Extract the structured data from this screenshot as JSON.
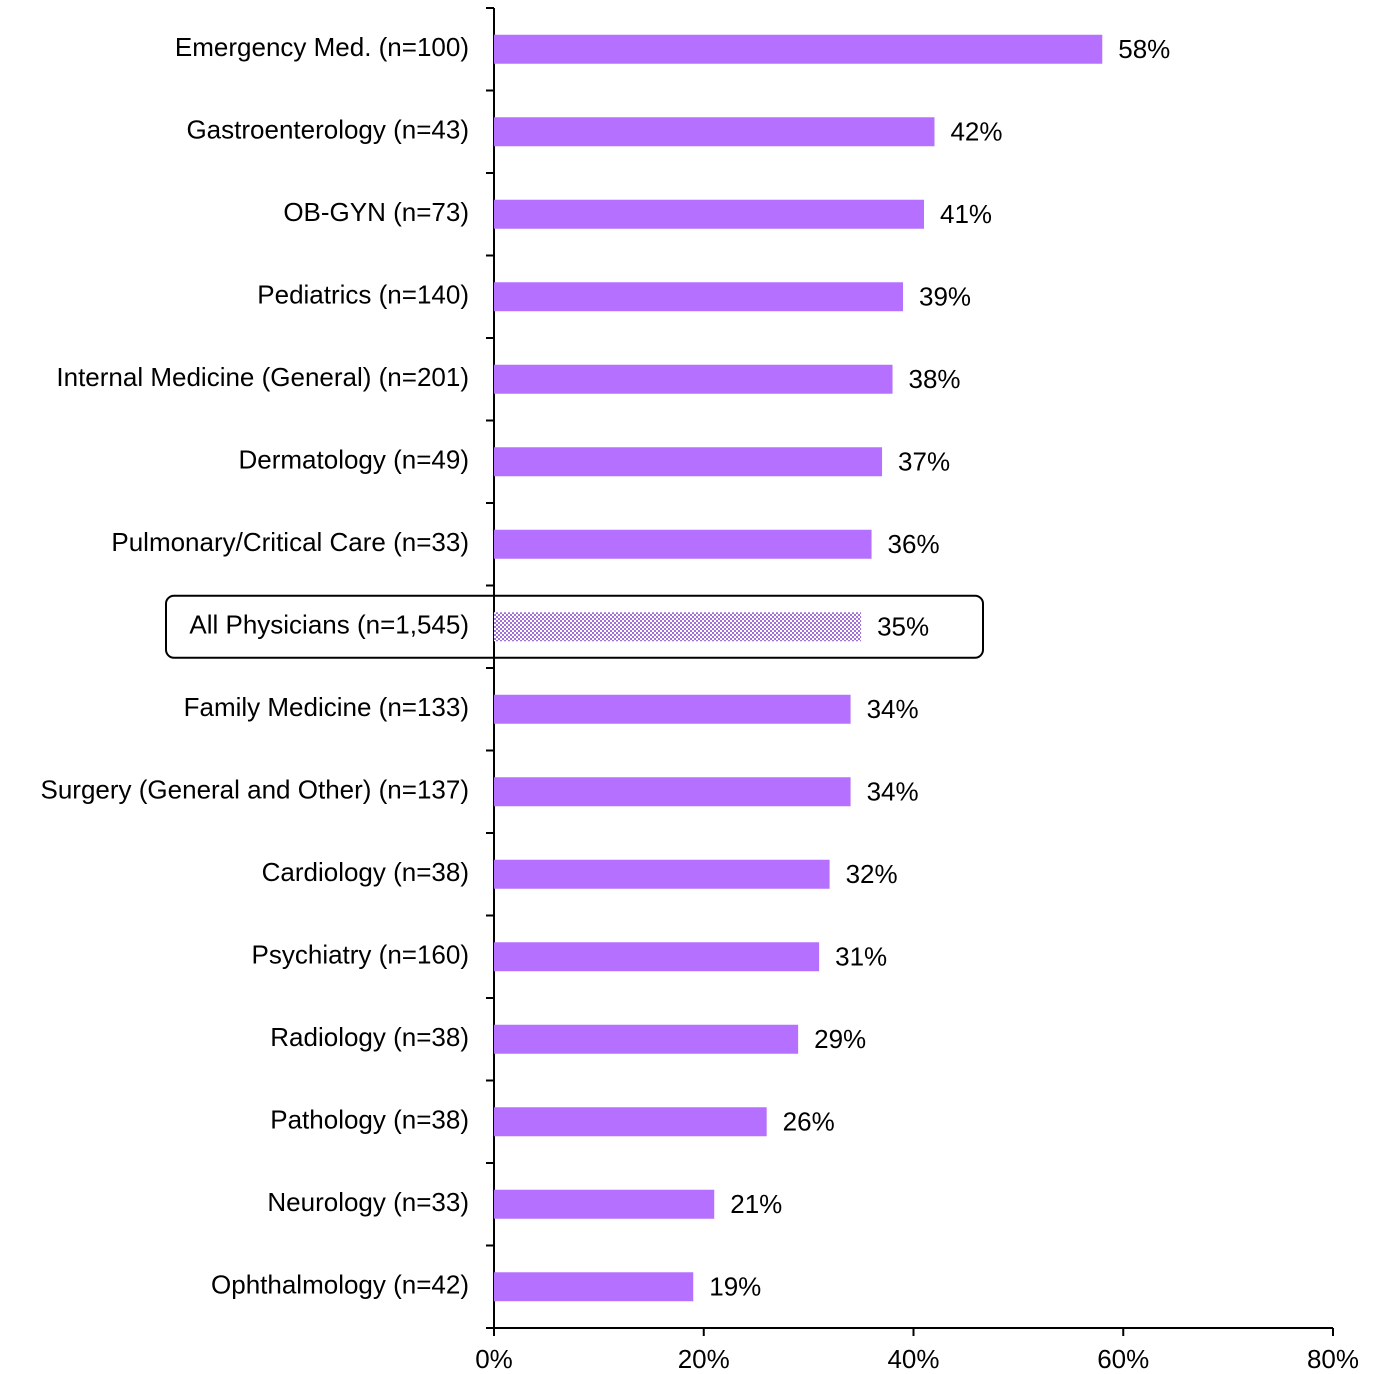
{
  "chart_data": {
    "type": "bar",
    "orientation": "horizontal",
    "categories": [
      "Emergency Med. (n=100)",
      "Gastroenterology (n=43)",
      "OB-GYN (n=73)",
      "Pediatrics (n=140)",
      "Internal Medicine (General) (n=201)",
      "Dermatology (n=49)",
      "Pulmonary/Critical Care (n=33)",
      "All Physicians (n=1,545)",
      "Family Medicine (n=133)",
      "Surgery (General and Other) (n=137)",
      "Cardiology (n=38)",
      "Psychiatry (n=160)",
      "Radiology (n=38)",
      "Pathology (n=38)",
      "Neurology (n=33)",
      "Ophthalmology (n=42)"
    ],
    "values": [
      58,
      42,
      41,
      39,
      38,
      37,
      36,
      35,
      34,
      34,
      32,
      31,
      29,
      26,
      21,
      19
    ],
    "value_labels": [
      "58%",
      "42%",
      "41%",
      "39%",
      "38%",
      "37%",
      "36%",
      "35%",
      "34%",
      "34%",
      "32%",
      "31%",
      "29%",
      "26%",
      "21%",
      "19%"
    ],
    "color": "#b570ff",
    "highlight_index": 7,
    "xlim": [
      0,
      80
    ],
    "xticks": [
      {
        "value": 0,
        "label": "0%"
      },
      {
        "value": 20,
        "label": "20%"
      },
      {
        "value": 40,
        "label": "40%"
      },
      {
        "value": 60,
        "label": "60%"
      },
      {
        "value": 80,
        "label": "80%"
      }
    ],
    "grid": false
  }
}
